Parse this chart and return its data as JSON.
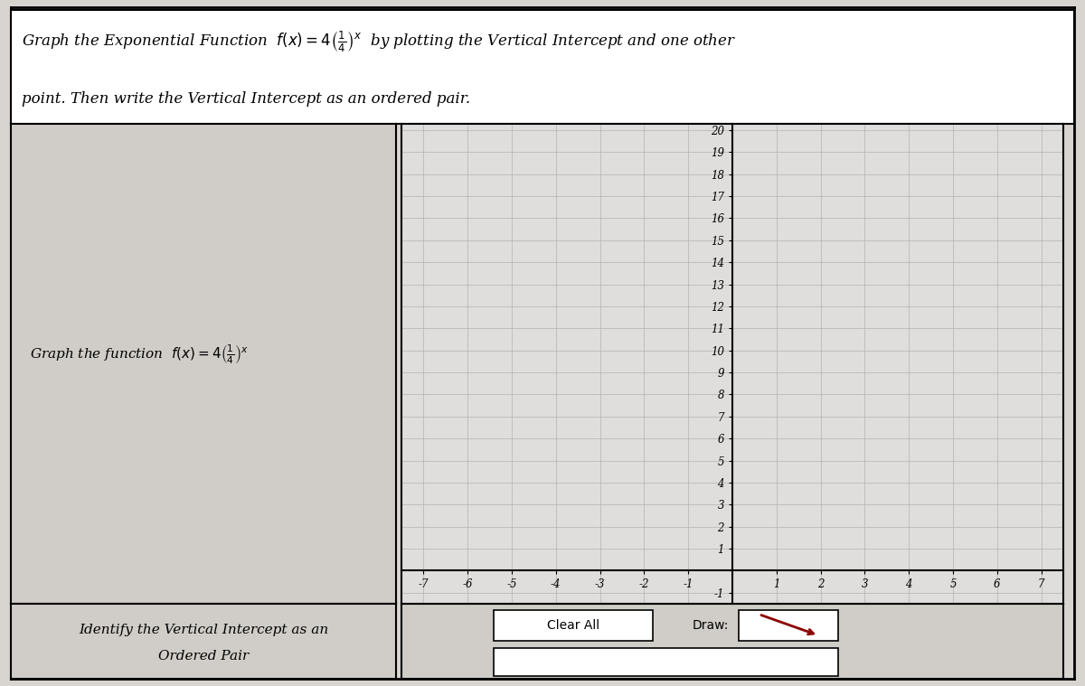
{
  "title_line1": "Graph the Exponential Function  $f(x) = 4\\left(\\frac{1}{4}\\right)^x$  by plotting the Vertical Intercept and one other",
  "title_line2": "point. Then write the Vertical Intercept as an ordered pair.",
  "graph_label": "Graph the function  $f(x) = 4\\left(\\frac{1}{4}\\right)^x$",
  "bottom_left_line1": "Identify the Vertical Intercept as an",
  "bottom_left_line2": "Ordered Pair",
  "xmin": -7,
  "xmax": 7,
  "ymin": -1,
  "ymax": 20,
  "bg_color": "#d8d5d0",
  "grid_color": "#b0b0b0",
  "graph_bg": "#e0dedd",
  "border_color": "#000000",
  "text_color": "#000000",
  "button_clear": "Clear All",
  "button_draw": "Draw:",
  "panel_bg": "#d0cdc8",
  "white": "#ffffff"
}
